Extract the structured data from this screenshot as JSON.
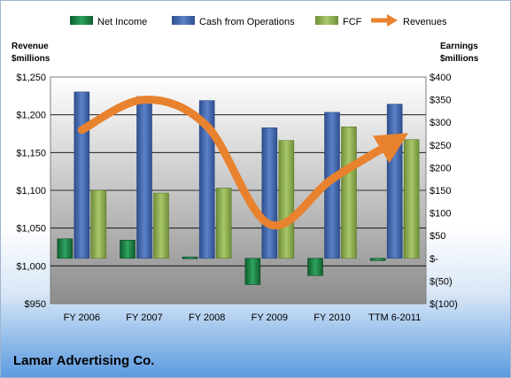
{
  "company": "Lamar Advertising Co.",
  "chart_data": {
    "type": "bar",
    "categories": [
      "FY 2006",
      "FY 2007",
      "FY 2008",
      "FY 2009",
      "FY 2010",
      "TTM 6-2011"
    ],
    "left_axis": {
      "label_line1": "Revenue",
      "label_line2": "$millions",
      "min": 950,
      "max": 1250,
      "step": 50,
      "ticks": [
        "$950",
        "$1,000",
        "$1,050",
        "$1,100",
        "$1,150",
        "$1,200",
        "$1,250"
      ]
    },
    "right_axis": {
      "label_line1": "Earnings",
      "label_line2": "$millions",
      "min": -100,
      "max": 400,
      "step": 50,
      "ticks": [
        "$(100)",
        "$(50)",
        "$-",
        "$50",
        "$100",
        "$150",
        "$200",
        "$250",
        "$300",
        "$350",
        "$400"
      ]
    },
    "series": [
      {
        "name": "Net Income",
        "axis": "right",
        "color": "#1e8a4c",
        "values": [
          43,
          40,
          3,
          -58,
          -38,
          -5
        ]
      },
      {
        "name": "Cash from Operations",
        "axis": "right",
        "color": "#4a6fb5",
        "values": [
          367,
          357,
          348,
          288,
          322,
          340
        ]
      },
      {
        "name": "FCF",
        "axis": "right",
        "color": "#95b85a",
        "values": [
          150,
          144,
          155,
          260,
          290,
          262
        ]
      },
      {
        "name": "Revenues",
        "axis": "left",
        "color": "#e8822e",
        "type": "line",
        "values": [
          1180,
          1220,
          1185,
          1055,
          1115,
          1165
        ]
      }
    ],
    "legend_position": "top",
    "grid": true
  }
}
